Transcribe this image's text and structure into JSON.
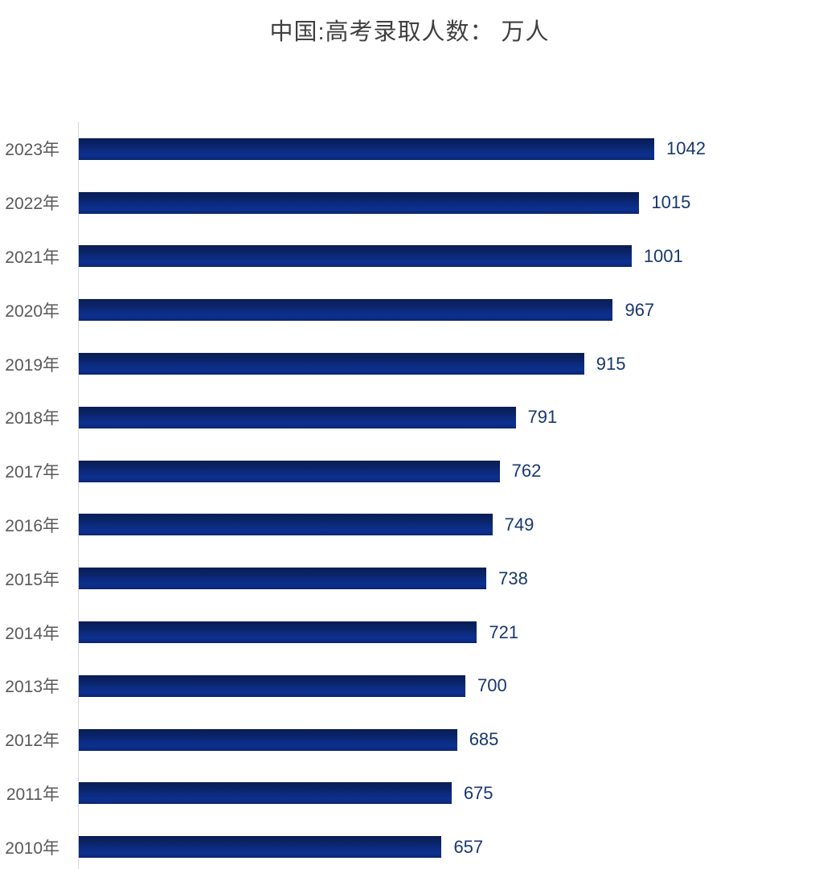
{
  "title": "中国:高考录取人数： 万人",
  "chart_data": {
    "type": "bar",
    "orientation": "horizontal",
    "title": "中国:高考录取人数： 万人",
    "xlabel": "",
    "ylabel": "",
    "categories": [
      "2023年",
      "2022年",
      "2021年",
      "2020年",
      "2019年",
      "2018年",
      "2017年",
      "2016年",
      "2015年",
      "2014年",
      "2013年",
      "2012年",
      "2011年",
      "2010年"
    ],
    "values": [
      1042,
      1015,
      1001,
      967,
      915,
      791,
      762,
      749,
      738,
      721,
      700,
      685,
      675,
      657
    ],
    "unit": "万人",
    "xlim": [
      0,
      1042
    ],
    "grid": false,
    "legend": false,
    "value_labels_shown": true,
    "colors": {
      "bar_gradient_top": "#091d55",
      "bar_gradient_bottom": "#0d3090",
      "value_label": "#17376e",
      "category_label": "#595959",
      "title": "#404040",
      "axis_line": "#d9d9d9",
      "background": "#ffffff"
    }
  }
}
